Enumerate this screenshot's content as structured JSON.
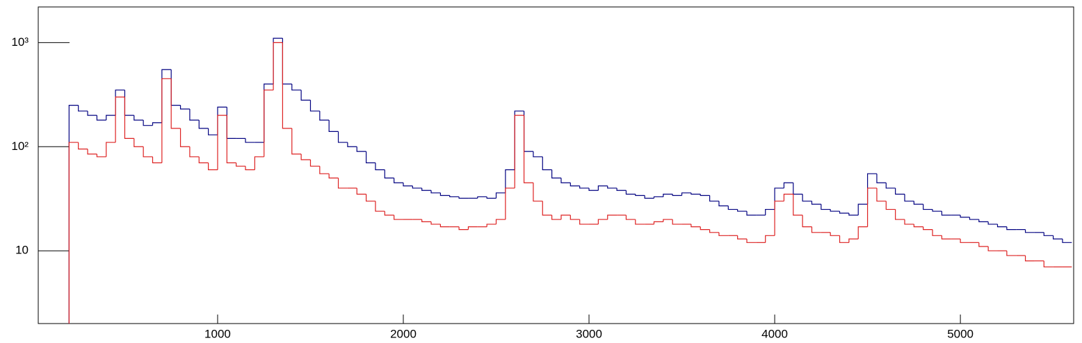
{
  "chart_data": {
    "type": "histogram",
    "bins": [
      200,
      250,
      300,
      350,
      400,
      450,
      500,
      550,
      600,
      650,
      700,
      750,
      800,
      850,
      900,
      950,
      1000,
      1050,
      1100,
      1150,
      1200,
      1250,
      1300,
      1350,
      1400,
      1450,
      1500,
      1550,
      1600,
      1650,
      1700,
      1750,
      1800,
      1850,
      1900,
      1950,
      2000,
      2050,
      2100,
      2150,
      2200,
      2250,
      2300,
      2350,
      2400,
      2450,
      2500,
      2550,
      2600,
      2650,
      2700,
      2750,
      2800,
      2850,
      2900,
      2950,
      3000,
      3050,
      3100,
      3150,
      3200,
      3250,
      3300,
      3350,
      3400,
      3450,
      3500,
      3550,
      3600,
      3650,
      3700,
      3750,
      3800,
      3850,
      3900,
      3950,
      4000,
      4050,
      4100,
      4150,
      4200,
      4250,
      4300,
      4350,
      4400,
      4450,
      4500,
      4550,
      4600,
      4650,
      4700,
      4750,
      4800,
      4850,
      4900,
      4950,
      5000,
      5050,
      5100,
      5150,
      5200,
      5250,
      5300,
      5350,
      5400,
      5450,
      5500,
      5550,
      5600
    ],
    "series": [
      {
        "color": "#000080",
        "values": [
          250,
          220,
          200,
          180,
          200,
          350,
          200,
          180,
          160,
          170,
          550,
          250,
          230,
          180,
          150,
          130,
          240,
          120,
          120,
          110,
          110,
          400,
          1100,
          400,
          350,
          280,
          220,
          180,
          140,
          110,
          100,
          90,
          70,
          60,
          50,
          45,
          42,
          40,
          38,
          36,
          34,
          33,
          32,
          32,
          33,
          32,
          36,
          60,
          220,
          90,
          80,
          60,
          50,
          45,
          42,
          40,
          38,
          42,
          40,
          38,
          35,
          34,
          32,
          33,
          35,
          34,
          36,
          35,
          34,
          30,
          27,
          25,
          24,
          22,
          22,
          25,
          40,
          45,
          35,
          30,
          28,
          25,
          24,
          23,
          22,
          28,
          55,
          45,
          40,
          35,
          30,
          28,
          25,
          24,
          22,
          22,
          21,
          20,
          19,
          18,
          17,
          16,
          16,
          15,
          15,
          14,
          13,
          12
        ]
      },
      {
        "color": "#dd2020",
        "values": [
          110,
          95,
          85,
          80,
          110,
          300,
          120,
          100,
          80,
          70,
          450,
          150,
          100,
          80,
          70,
          60,
          200,
          70,
          65,
          60,
          80,
          350,
          1000,
          150,
          85,
          75,
          65,
          55,
          50,
          40,
          40,
          35,
          30,
          24,
          22,
          20,
          20,
          20,
          19,
          18,
          17,
          17,
          16,
          17,
          17,
          18,
          20,
          40,
          200,
          45,
          30,
          22,
          20,
          22,
          20,
          18,
          18,
          20,
          22,
          22,
          20,
          18,
          18,
          19,
          20,
          18,
          18,
          17,
          16,
          15,
          14,
          14,
          13,
          12,
          12,
          14,
          30,
          35,
          22,
          17,
          15,
          15,
          14,
          12,
          13,
          17,
          40,
          30,
          25,
          20,
          18,
          17,
          16,
          14,
          13,
          13,
          12,
          12,
          11,
          10,
          10,
          9,
          9,
          8,
          8,
          7,
          7,
          7
        ]
      }
    ],
    "xlim": [
      34,
      5610
    ],
    "xticks": [
      1000,
      2000,
      3000,
      4000,
      5000
    ],
    "ylim": [
      2,
      2200
    ],
    "log_y": true,
    "yticks": [
      10,
      {
        "value": 100,
        "label": "10²"
      },
      {
        "value": 1000,
        "label": "10³"
      }
    ]
  }
}
